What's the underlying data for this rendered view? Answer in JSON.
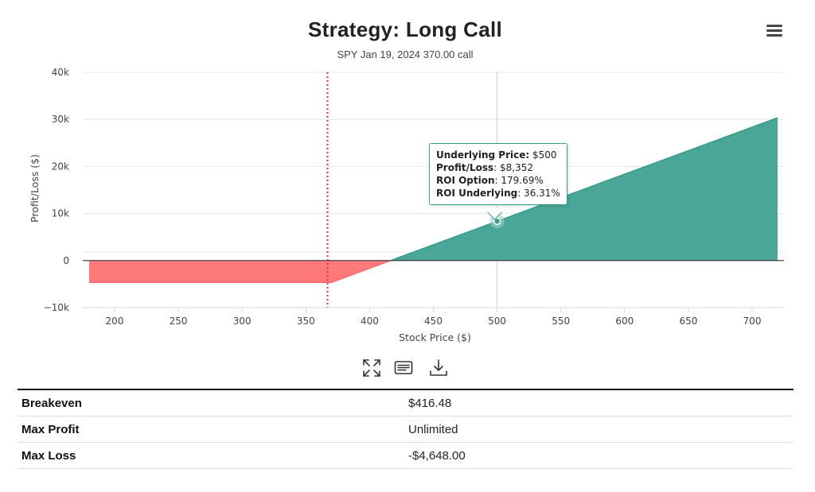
{
  "chart_data": {
    "type": "area",
    "title": "Strategy: Long Call",
    "subtitle": "SPY Jan 19, 2024 370.00 call",
    "xlabel": "Stock Price ($)",
    "ylabel": "Profit/Loss ($)",
    "xlim": [
      170,
      725
    ],
    "ylim": [
      -10000,
      40000
    ],
    "x_ticks": [
      200,
      250,
      300,
      350,
      400,
      450,
      500,
      550,
      600,
      650,
      700
    ],
    "y_ticks": [
      {
        "value": -10000,
        "label": "−10k"
      },
      {
        "value": 0,
        "label": "0"
      },
      {
        "value": 10000,
        "label": "10k"
      },
      {
        "value": 20000,
        "label": "20k"
      },
      {
        "value": 30000,
        "label": "30k"
      },
      {
        "value": 40000,
        "label": "40k"
      }
    ],
    "grid": true,
    "series": [
      {
        "points": [
          [
            180,
            -4648
          ],
          [
            370,
            -4648
          ],
          [
            416.48,
            0
          ],
          [
            720,
            30352
          ]
        ]
      }
    ],
    "loss_color": "#ff7b7b",
    "profit_color": "#4aa697",
    "strike_line": {
      "x": 367,
      "color": "#e0302f"
    },
    "crosshair_x": 500,
    "highlight_point": {
      "x": 500,
      "y": 8352
    }
  },
  "tooltip": {
    "underlying_label": "Underlying Price:",
    "underlying_value": "$500",
    "pl_label": "Profit/Loss",
    "pl_value": ": $8,352",
    "roi_option_label": "ROI Option",
    "roi_option_value": ": 179.69%",
    "roi_underlying_label": "ROI Underlying",
    "roi_underlying_value": ": 36.31%"
  },
  "toolbar": {
    "icons": [
      "fullscreen-icon",
      "data-table-icon",
      "download-icon"
    ]
  },
  "menu": {
    "icon": "hamburger-menu-icon"
  },
  "summary": {
    "rows": [
      {
        "label": "Breakeven",
        "value": "$416.48"
      },
      {
        "label": "Max Profit",
        "value": "Unlimited"
      },
      {
        "label": "Max Loss",
        "value": "-$4,648.00"
      }
    ]
  }
}
